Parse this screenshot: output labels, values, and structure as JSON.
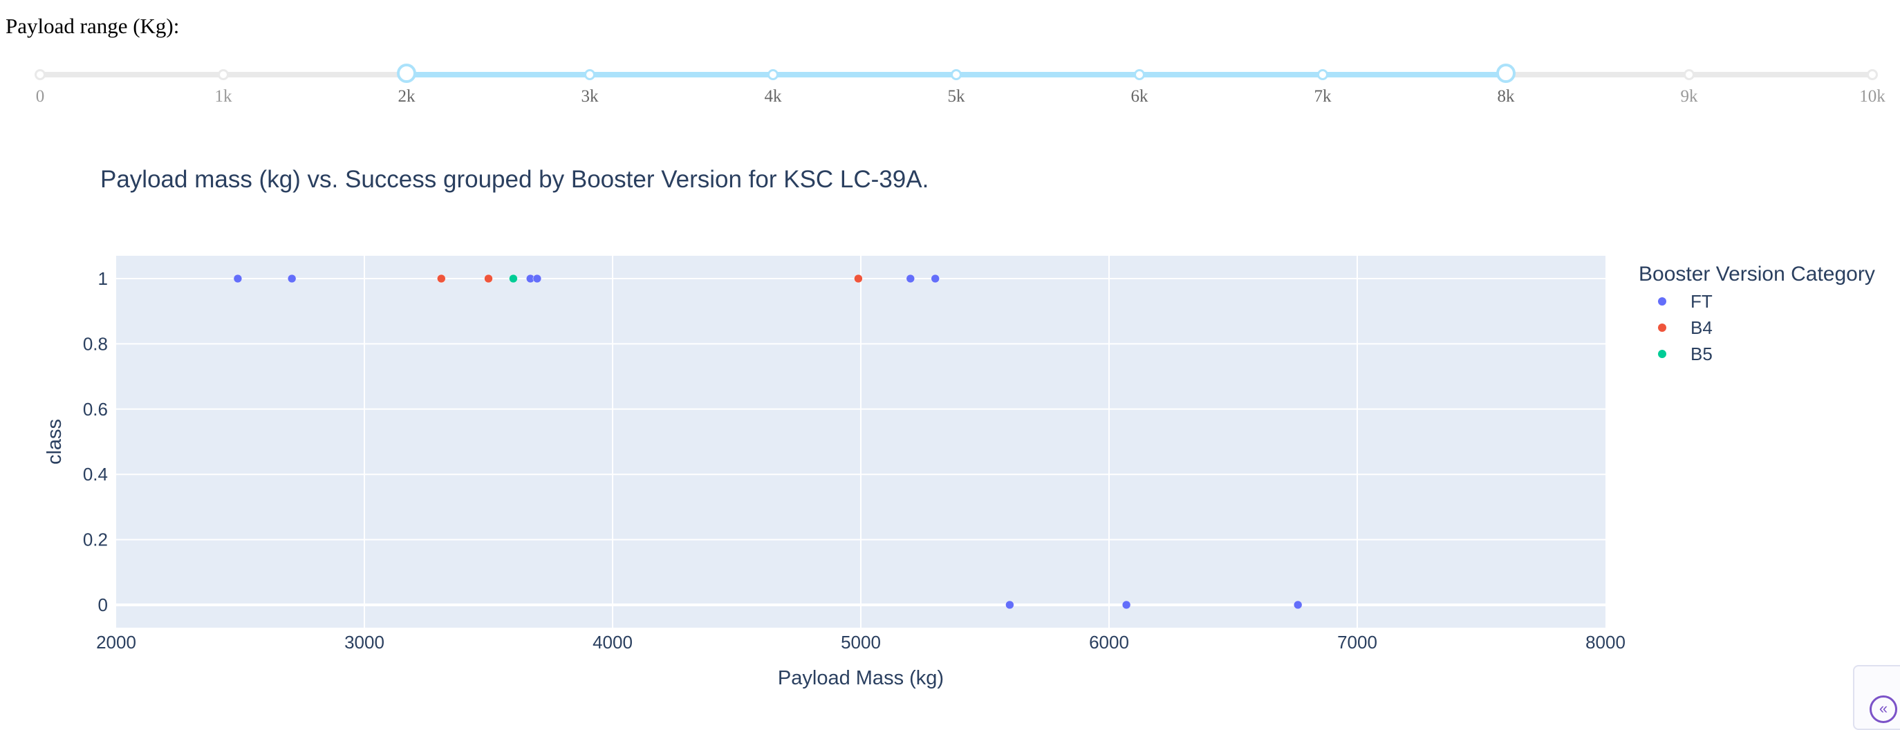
{
  "range_label": "Payload range (Kg):",
  "slider": {
    "marks": [
      "0",
      "1k",
      "2k",
      "3k",
      "4k",
      "5k",
      "6k",
      "7k",
      "8k",
      "9k",
      "10k"
    ],
    "min": 0,
    "max": 10000,
    "value": [
      2000,
      8000
    ],
    "accent_color": "#abe2fb",
    "rail_color": "#e9e9e9"
  },
  "collapse_icon": "chevron-double-left-icon",
  "chart_data": {
    "type": "scatter",
    "title": "Payload mass (kg) vs. Success grouped by Booster Version for KSC LC-39A.",
    "xlabel": "Payload Mass (kg)",
    "ylabel": "class",
    "xlim": [
      2000,
      8000
    ],
    "ylim": [
      -0.07,
      1.07
    ],
    "xticks": [
      2000,
      3000,
      4000,
      5000,
      6000,
      7000,
      8000
    ],
    "yticks": [
      0,
      0.2,
      0.4,
      0.6,
      0.8,
      1
    ],
    "ytick_labels": [
      "0",
      "0.2",
      "0.4",
      "0.6",
      "0.8",
      "1"
    ],
    "grid": true,
    "legend_title": "Booster Version Category",
    "legend_position": "top-right",
    "plot_bg": "#e5ecf6",
    "series": [
      {
        "name": "FT",
        "color": "#636efa",
        "points": [
          [
            2490,
            1
          ],
          [
            2708,
            1
          ],
          [
            3669,
            1
          ],
          [
            3696,
            1
          ],
          [
            5200,
            1
          ],
          [
            5300,
            1
          ],
          [
            5600,
            0
          ],
          [
            6070,
            0
          ],
          [
            6761,
            0
          ]
        ]
      },
      {
        "name": "B4",
        "color": "#ef553b",
        "points": [
          [
            3310,
            1
          ],
          [
            3500,
            1
          ],
          [
            4990,
            1
          ]
        ]
      },
      {
        "name": "B5",
        "color": "#00cc96",
        "points": [
          [
            3600,
            1
          ]
        ]
      }
    ]
  }
}
